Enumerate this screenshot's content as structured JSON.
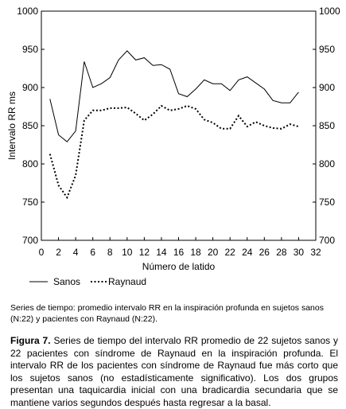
{
  "chart_data": {
    "type": "line",
    "xlabel": "Número de latido",
    "ylabel": "Intervalo RR ms",
    "xlim": [
      0,
      32
    ],
    "ylim": [
      700,
      1000
    ],
    "x_ticks": [
      "0",
      "2",
      "4",
      "6",
      "8",
      "10",
      "12",
      "14",
      "16",
      "18",
      "20",
      "22",
      "24",
      "26",
      "28",
      "30",
      "32"
    ],
    "y_ticks": [
      "700",
      "750",
      "800",
      "850",
      "900",
      "950",
      "1000"
    ],
    "grid": false,
    "legend_position": "bottom-left",
    "x": [
      1,
      2,
      3,
      4,
      5,
      6,
      7,
      8,
      9,
      10,
      11,
      12,
      13,
      14,
      15,
      16,
      17,
      18,
      19,
      20,
      21,
      22,
      23,
      24,
      25,
      26,
      27,
      28,
      29,
      30
    ],
    "series": [
      {
        "name": "Sanos",
        "style": "solid",
        "values": [
          885,
          838,
          829,
          843,
          934,
          900,
          905,
          913,
          936,
          948,
          936,
          939,
          929,
          930,
          924,
          892,
          888,
          898,
          910,
          905,
          905,
          896,
          910,
          914,
          906,
          898,
          883,
          880,
          880,
          894
        ]
      },
      {
        "name": "Raynaud",
        "style": "dotted",
        "values": [
          813,
          772,
          756,
          785,
          857,
          870,
          870,
          873,
          873,
          874,
          866,
          857,
          865,
          876,
          870,
          872,
          876,
          872,
          858,
          854,
          846,
          846,
          863,
          849,
          855,
          850,
          847,
          846,
          852,
          849
        ]
      }
    ]
  },
  "caption": {
    "small": "Series de tiempo: promedio intervalo RR en la inspiración profunda en sujetos sanos (N:22) y pacientes con Raynaud (N:22).",
    "figure_label": "Figura 7.",
    "main": " Series de tiempo del intervalo RR promedio de 22 sujetos sanos y 22 pacientes con síndrome de Raynaud en la inspiración profunda. El intervalo RR de los pacientes con síndrome de Raynaud fue más corto que los sujetos sanos (no estadísticamente significativo). Los dos grupos presentan una taquicardia inicial con una bradicardia secundaria que se mantiene varios segundos después hasta regresar a la basal."
  }
}
